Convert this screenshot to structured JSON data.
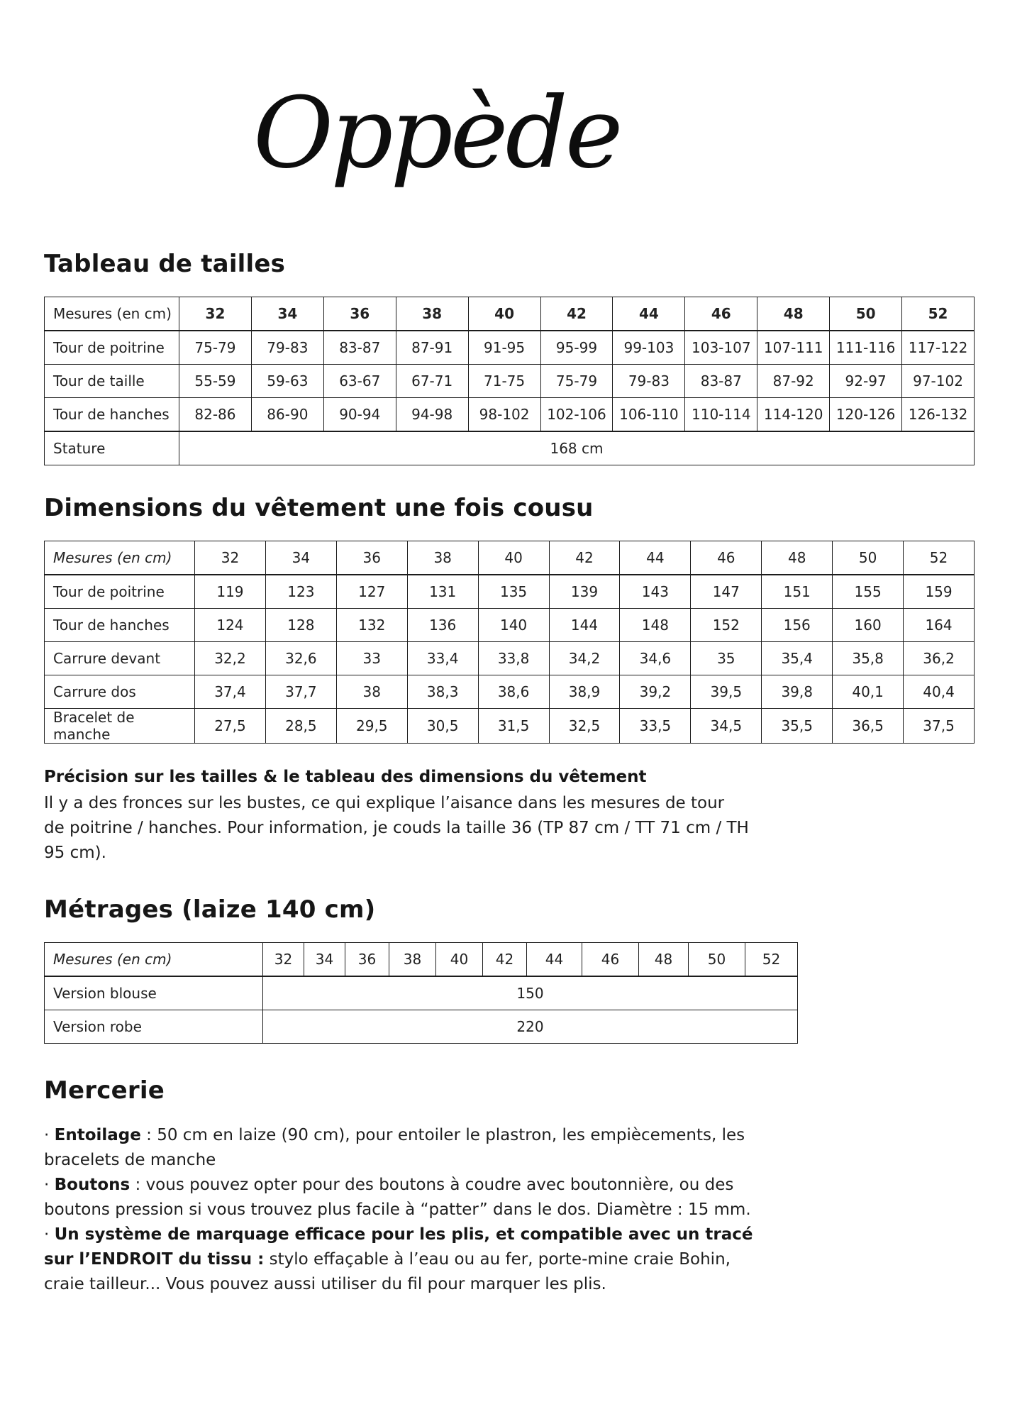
{
  "logo": {
    "text": "Oppède"
  },
  "sizes": [
    "32",
    "34",
    "36",
    "38",
    "40",
    "42",
    "44",
    "46",
    "48",
    "50",
    "52"
  ],
  "size_table": {
    "title": "Tableau de tailles",
    "header_label": "Mesures (en cm)",
    "rows": [
      {
        "label": "Tour de poitrine",
        "values": [
          "75-79",
          "79-83",
          "83-87",
          "87-91",
          "91-95",
          "95-99",
          "99-103",
          "103-107",
          "107-111",
          "111-116",
          "117-122"
        ]
      },
      {
        "label": "Tour de taille",
        "values": [
          "55-59",
          "59-63",
          "63-67",
          "67-71",
          "71-75",
          "75-79",
          "79-83",
          "83-87",
          "87-92",
          "92-97",
          "97-102"
        ]
      },
      {
        "label": "Tour de hanches",
        "values": [
          "82-86",
          "86-90",
          "90-94",
          "94-98",
          "98-102",
          "102-106",
          "106-110",
          "110-114",
          "114-120",
          "120-126",
          "126-132"
        ]
      }
    ],
    "stature_label": "Stature",
    "stature_value": "168 cm"
  },
  "garment_table": {
    "title": "Dimensions du vêtement une fois cousu",
    "header_label": "Mesures (en cm)",
    "rows": [
      {
        "label": "Tour de poitrine",
        "values": [
          "119",
          "123",
          "127",
          "131",
          "135",
          "139",
          "143",
          "147",
          "151",
          "155",
          "159"
        ]
      },
      {
        "label": "Tour de hanches",
        "values": [
          "124",
          "128",
          "132",
          "136",
          "140",
          "144",
          "148",
          "152",
          "156",
          "160",
          "164"
        ]
      },
      {
        "label": "Carrure devant",
        "values": [
          "32,2",
          "32,6",
          "33",
          "33,4",
          "33,8",
          "34,2",
          "34,6",
          "35",
          "35,4",
          "35,8",
          "36,2"
        ]
      },
      {
        "label": "Carrure dos",
        "values": [
          "37,4",
          "37,7",
          "38",
          "38,3",
          "38,6",
          "38,9",
          "39,2",
          "39,5",
          "39,8",
          "40,1",
          "40,4"
        ]
      },
      {
        "label": "Bracelet de manche",
        "values": [
          "27,5",
          "28,5",
          "29,5",
          "30,5",
          "31,5",
          "32,5",
          "33,5",
          "34,5",
          "35,5",
          "36,5",
          "37,5"
        ]
      }
    ]
  },
  "note": {
    "title": "Précision sur les tailles & le tableau des dimensions du vêtement",
    "body": "Il y a des fronces sur les bustes, ce qui explique l’aisance dans les mesures de tour de poitrine / hanches. Pour information, je couds la taille 36 (TP 87 cm / TT 71 cm / TH 95 cm)."
  },
  "yardage_table": {
    "title": "Métrages (laize 140 cm)",
    "header_label": "Mesures (en cm)",
    "rows": [
      {
        "label": "Version blouse",
        "value": "150"
      },
      {
        "label": "Version robe",
        "value": "220"
      }
    ]
  },
  "mercerie": {
    "title": "Mercerie",
    "items": [
      {
        "bullet": "·",
        "bold": "Entoilage",
        "text": " : 50 cm en laize (90 cm), pour entoiler le plastron, les empiècements, les bracelets de manche"
      },
      {
        "bullet": "·",
        "bold": "Boutons",
        "text": " : vous pouvez opter pour des boutons à coudre avec boutonnière, ou des boutons pression si vous trouvez plus facile à “patter” dans le dos. Diamètre : 15 mm."
      },
      {
        "bullet": "·",
        "bold": "Un système de marquage efficace pour les plis, et compatible avec un tracé sur l’ENDROIT du tissu :",
        "text": " stylo effaçable à l’eau ou au fer, porte-mine craie Bohin, craie tailleur... Vous pouvez aussi utiliser du fil pour marquer les plis."
      }
    ]
  }
}
